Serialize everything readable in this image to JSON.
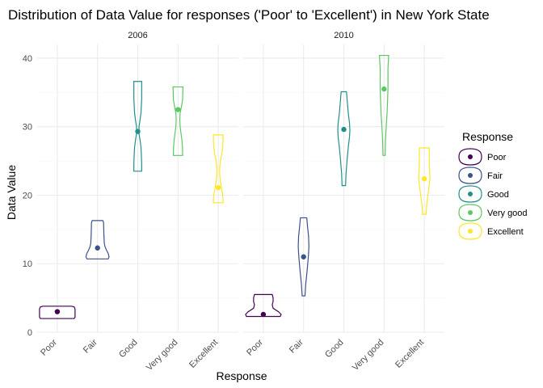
{
  "chart_data": {
    "type": "violin",
    "title": "Distribution of Data Value for responses ('Poor' to 'Excellent') in New York State",
    "xlabel": "Response",
    "ylabel": "Data Value",
    "ylim": [
      0,
      42
    ],
    "yticks": [
      0,
      10,
      20,
      30,
      40
    ],
    "categories": [
      "Poor",
      "Fair",
      "Good",
      "Very good",
      "Excellent"
    ],
    "colors": {
      "Poor": "#440154",
      "Fair": "#3B528B",
      "Good": "#21908C",
      "Very good": "#5DC863",
      "Excellent": "#FDE725"
    },
    "grid": true,
    "legend": {
      "title": "Response",
      "position": "right",
      "entries": [
        "Poor",
        "Fair",
        "Good",
        "Very good",
        "Excellent"
      ]
    },
    "facets": [
      {
        "label": "2006",
        "groups": [
          {
            "response": "Poor",
            "min": 2.0,
            "max": 3.8,
            "point": 3.0,
            "profile": [
              [
                2.0,
                0.95
              ],
              [
                2.2,
                1.0
              ],
              [
                2.6,
                1.0
              ],
              [
                3.0,
                1.0
              ],
              [
                3.4,
                1.0
              ],
              [
                3.7,
                0.95
              ],
              [
                3.8,
                0.8
              ]
            ]
          },
          {
            "response": "Fair",
            "min": 10.7,
            "max": 16.3,
            "point": 12.3,
            "profile": [
              [
                10.7,
                0.6
              ],
              [
                11.0,
                0.65
              ],
              [
                11.5,
                0.6
              ],
              [
                12.0,
                0.5
              ],
              [
                12.5,
                0.42
              ],
              [
                13.0,
                0.38
              ],
              [
                14.0,
                0.36
              ],
              [
                15.0,
                0.35
              ],
              [
                16.0,
                0.34
              ],
              [
                16.3,
                0.3
              ]
            ]
          },
          {
            "response": "Good",
            "min": 23.5,
            "max": 36.6,
            "point": 29.3,
            "profile": [
              [
                23.5,
                0.22
              ],
              [
                24.5,
                0.22
              ],
              [
                26.0,
                0.2
              ],
              [
                27.0,
                0.18
              ],
              [
                28.0,
                0.13
              ],
              [
                29.0,
                0.07
              ],
              [
                30.0,
                0.07
              ],
              [
                31.0,
                0.13
              ],
              [
                32.0,
                0.18
              ],
              [
                33.0,
                0.2
              ],
              [
                34.0,
                0.22
              ],
              [
                35.0,
                0.22
              ],
              [
                36.6,
                0.22
              ]
            ]
          },
          {
            "response": "Very good",
            "min": 25.8,
            "max": 35.8,
            "point": 32.5,
            "profile": [
              [
                25.8,
                0.26
              ],
              [
                27.0,
                0.25
              ],
              [
                28.0,
                0.22
              ],
              [
                29.0,
                0.17
              ],
              [
                30.0,
                0.12
              ],
              [
                31.0,
                0.1
              ],
              [
                32.0,
                0.12
              ],
              [
                33.0,
                0.2
              ],
              [
                34.0,
                0.26
              ],
              [
                35.0,
                0.27
              ],
              [
                35.8,
                0.28
              ]
            ]
          },
          {
            "response": "Excellent",
            "min": 18.9,
            "max": 28.8,
            "point": 21.1,
            "profile": [
              [
                18.9,
                0.27
              ],
              [
                19.5,
                0.27
              ],
              [
                20.2,
                0.24
              ],
              [
                21.0,
                0.18
              ],
              [
                22.0,
                0.12
              ],
              [
                23.0,
                0.08
              ],
              [
                24.0,
                0.08
              ],
              [
                25.0,
                0.12
              ],
              [
                26.0,
                0.2
              ],
              [
                27.0,
                0.25
              ],
              [
                28.0,
                0.27
              ],
              [
                28.8,
                0.27
              ]
            ]
          }
        ]
      },
      {
        "label": "2010",
        "groups": [
          {
            "response": "Poor",
            "min": 2.3,
            "max": 5.5,
            "point": 2.6,
            "profile": [
              [
                2.3,
                0.95
              ],
              [
                2.6,
                1.0
              ],
              [
                3.0,
                0.85
              ],
              [
                3.5,
                0.55
              ],
              [
                4.0,
                0.5
              ],
              [
                4.5,
                0.55
              ],
              [
                5.0,
                0.55
              ],
              [
                5.5,
                0.5
              ]
            ]
          },
          {
            "response": "Fair",
            "min": 5.3,
            "max": 16.7,
            "point": 11.0,
            "profile": [
              [
                5.3,
                0.08
              ],
              [
                7.0,
                0.12
              ],
              [
                9.0,
                0.2
              ],
              [
                10.5,
                0.25
              ],
              [
                11.5,
                0.28
              ],
              [
                12.5,
                0.3
              ],
              [
                14.0,
                0.28
              ],
              [
                15.5,
                0.22
              ],
              [
                16.7,
                0.18
              ]
            ]
          },
          {
            "response": "Good",
            "min": 21.4,
            "max": 35.1,
            "point": 29.6,
            "profile": [
              [
                21.4,
                0.1
              ],
              [
                23.0,
                0.12
              ],
              [
                25.0,
                0.18
              ],
              [
                27.0,
                0.25
              ],
              [
                28.5,
                0.32
              ],
              [
                29.5,
                0.34
              ],
              [
                30.5,
                0.32
              ],
              [
                32.0,
                0.25
              ],
              [
                33.5,
                0.2
              ],
              [
                35.1,
                0.15
              ]
            ]
          },
          {
            "response": "Very good",
            "min": 25.8,
            "max": 40.4,
            "point": 35.5,
            "profile": [
              [
                25.8,
                0.06
              ],
              [
                28.0,
                0.08
              ],
              [
                30.0,
                0.12
              ],
              [
                32.0,
                0.17
              ],
              [
                34.0,
                0.2
              ],
              [
                35.5,
                0.22
              ],
              [
                37.0,
                0.22
              ],
              [
                38.5,
                0.22
              ],
              [
                39.5,
                0.24
              ],
              [
                40.4,
                0.26
              ]
            ]
          },
          {
            "response": "Excellent",
            "min": 17.2,
            "max": 26.9,
            "point": 22.4,
            "profile": [
              [
                17.2,
                0.1
              ],
              [
                18.5,
                0.13
              ],
              [
                20.0,
                0.2
              ],
              [
                21.5,
                0.28
              ],
              [
                22.5,
                0.32
              ],
              [
                23.5,
                0.3
              ],
              [
                24.5,
                0.28
              ],
              [
                25.5,
                0.28
              ],
              [
                26.9,
                0.28
              ]
            ]
          }
        ]
      }
    ]
  }
}
